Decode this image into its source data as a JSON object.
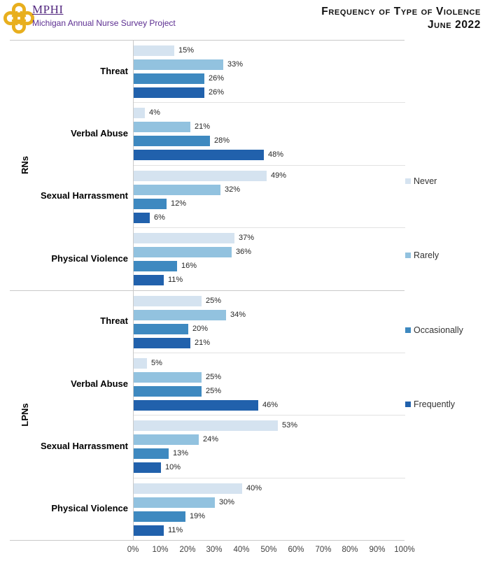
{
  "header": {
    "logo_acronym": "MPHI",
    "logo_tagline": "Michigan Annual Nurse Survey Project",
    "brand_purple": "#53287f",
    "brand_purple_light": "#5c2e91",
    "brand_gold": "#e8af1e",
    "title_line1": "Frequency of Type of Violence",
    "title_line2": "June 2022"
  },
  "chart_data": {
    "type": "bar",
    "orientation": "horizontal",
    "title": "Frequency of Type of Violence",
    "subtitle": "June 2022",
    "xlim": [
      0,
      100
    ],
    "x_ticks": [
      "0%",
      "10%",
      "20%",
      "30%",
      "40%",
      "50%",
      "60%",
      "70%",
      "80%",
      "90%",
      "100%"
    ],
    "grid": "off",
    "legend_position": "right",
    "value_label_format": "{v}%",
    "series": [
      {
        "name": "Never",
        "color": "#d5e3f0"
      },
      {
        "name": "Rarely",
        "color": "#92c2df"
      },
      {
        "name": "Occasionally",
        "color": "#3e89c0"
      },
      {
        "name": "Frequently",
        "color": "#2161ac"
      }
    ],
    "groups": [
      {
        "label": "RNs",
        "categories": [
          {
            "label": "Threat",
            "values": [
              15,
              33,
              26,
              26
            ]
          },
          {
            "label": "Verbal Abuse",
            "values": [
              4,
              21,
              28,
              48
            ]
          },
          {
            "label": "Sexual Harrassment",
            "values": [
              49,
              32,
              12,
              6
            ]
          },
          {
            "label": "Physical Violence",
            "values": [
              37,
              36,
              16,
              11
            ]
          }
        ]
      },
      {
        "label": "LPNs",
        "categories": [
          {
            "label": "Threat",
            "values": [
              25,
              34,
              20,
              21
            ]
          },
          {
            "label": "Verbal Abuse",
            "values": [
              5,
              25,
              25,
              46
            ]
          },
          {
            "label": "Sexual Harrassment",
            "values": [
              53,
              24,
              13,
              10
            ]
          },
          {
            "label": "Physical Violence",
            "values": [
              40,
              30,
              19,
              11
            ]
          }
        ]
      }
    ]
  }
}
